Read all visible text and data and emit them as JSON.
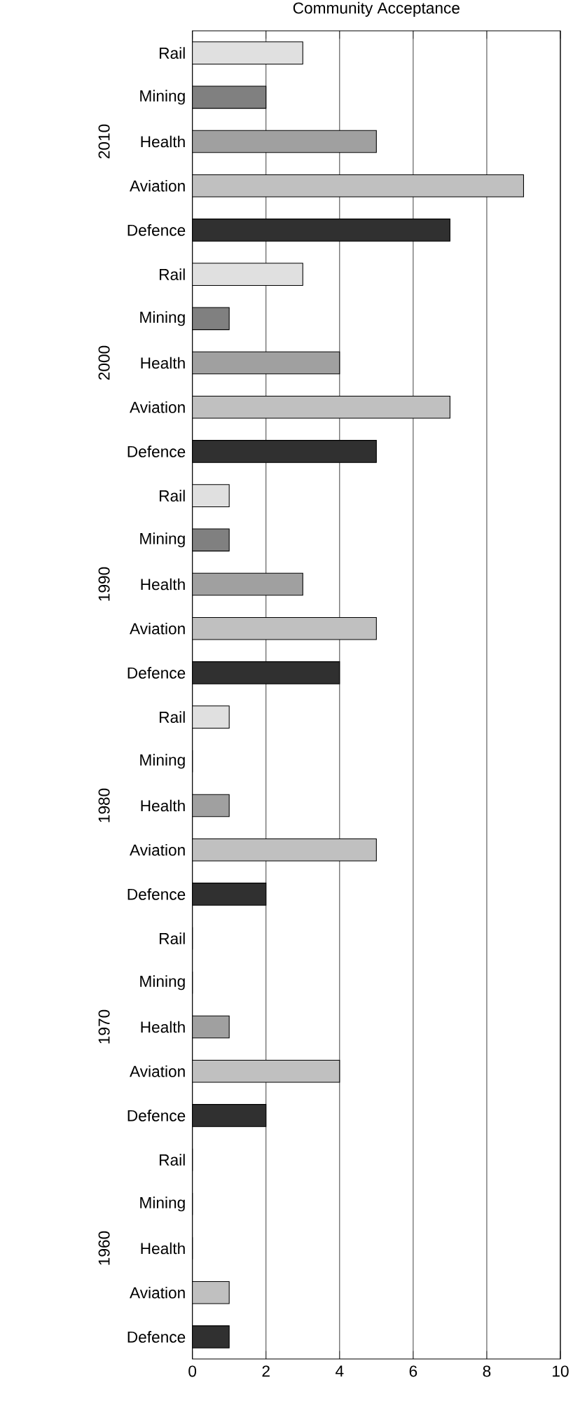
{
  "chart_data": {
    "type": "bar",
    "orientation": "horizontal",
    "title": "Community Acceptance",
    "categories": [
      "Rail",
      "Mining",
      "Health",
      "Aviation",
      "Defence",
      "Rail",
      "Mining",
      "Health",
      "Aviation",
      "Defence",
      "Rail",
      "Mining",
      "Health",
      "Aviation",
      "Defence",
      "Rail",
      "Mining",
      "Health",
      "Aviation",
      "Defence",
      "Rail",
      "Mining",
      "Health",
      "Aviation",
      "Defence",
      "Rail",
      "Mining",
      "Health",
      "Aviation",
      "Defence"
    ],
    "values": [
      3,
      2,
      5,
      9,
      7,
      3,
      1,
      4,
      7,
      5,
      1,
      1,
      3,
      5,
      4,
      1,
      0,
      1,
      5,
      2,
      0,
      0,
      1,
      4,
      2,
      0,
      0,
      0,
      1,
      1
    ],
    "colors": [
      "#e0e0e0",
      "#808080",
      "#a0a0a0",
      "#c0c0c0",
      "#303030",
      "#e0e0e0",
      "#808080",
      "#a0a0a0",
      "#c0c0c0",
      "#303030",
      "#e0e0e0",
      "#808080",
      "#a0a0a0",
      "#c0c0c0",
      "#303030",
      "#e0e0e0",
      "#808080",
      "#a0a0a0",
      "#c0c0c0",
      "#303030",
      "#e0e0e0",
      "#808080",
      "#a0a0a0",
      "#c0c0c0",
      "#303030",
      "#e0e0e0",
      "#808080",
      "#a0a0a0",
      "#c0c0c0",
      "#303030"
    ],
    "xlim": [
      0,
      10
    ],
    "xticks": [
      0,
      2,
      4,
      6,
      8,
      10
    ],
    "grid": "x",
    "annotations": [
      "2010",
      "2000",
      "1990",
      "1980",
      "1970",
      "1960"
    ]
  }
}
